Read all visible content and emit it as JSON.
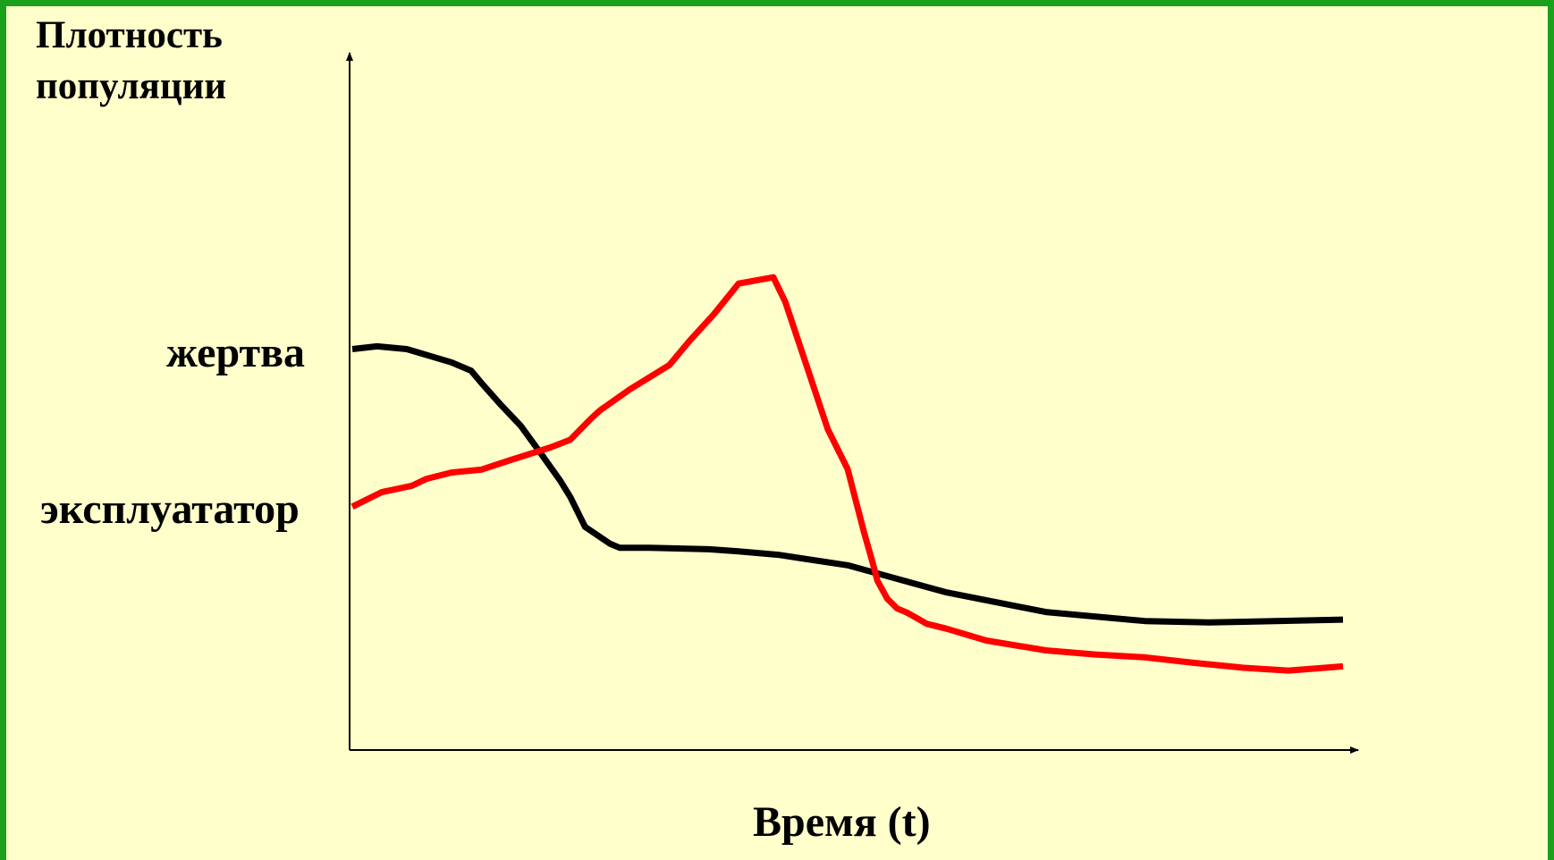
{
  "colors": {
    "frame": "#1aa01a",
    "background": "#ffffcc",
    "prey_line": "#000000",
    "predator_line": "#ff0000"
  },
  "chart_data": {
    "type": "line",
    "ylabel_lines": [
      "Плотность",
      "популяции"
    ],
    "xlabel": "Время (t)",
    "axis_ticks": false,
    "grid": false,
    "legend": "inline labels on y-axis",
    "xlim": [
      0,
      100
    ],
    "ylim": [
      0,
      100
    ],
    "series": [
      {
        "name": "жертва",
        "color": "#000000",
        "x": [
          0,
          2.5,
          5.5,
          10,
          12,
          13,
          15,
          17,
          19,
          21,
          22,
          23.5,
          26,
          27,
          30,
          36,
          39,
          43,
          50,
          60,
          70,
          80,
          86.5,
          100
        ],
        "y": [
          57.5,
          57.9,
          57.5,
          55.6,
          54.4,
          52.7,
          49.5,
          46.5,
          42.6,
          38.6,
          36.3,
          32.0,
          29.6,
          29.0,
          29.0,
          28.8,
          28.5,
          28.0,
          26.5,
          22.6,
          19.8,
          18.5,
          18.3,
          18.7
        ]
      },
      {
        "name": "эксплуататор",
        "color": "#ff0000",
        "x": [
          0,
          3,
          6,
          7.5,
          10,
          13,
          16,
          20,
          22,
          24,
          25,
          28,
          32,
          34,
          36.5,
          39,
          42.5,
          43.7,
          46,
          48,
          50,
          51,
          51.7,
          52.5,
          53,
          54,
          55,
          56,
          58,
          60,
          64,
          70,
          75,
          80,
          85,
          90,
          94.5,
          100
        ],
        "y": [
          34.9,
          37.0,
          37.9,
          38.9,
          39.8,
          40.2,
          41.6,
          43.4,
          44.5,
          47.4,
          48.7,
          51.7,
          55.2,
          58.6,
          62.5,
          66.9,
          67.8,
          64.3,
          54.5,
          46.0,
          40.3,
          34.8,
          31.0,
          27.0,
          24.3,
          21.7,
          20.3,
          19.7,
          18.1,
          17.4,
          15.7,
          14.3,
          13.7,
          13.3,
          12.5,
          11.8,
          11.4,
          12.0
        ]
      }
    ]
  }
}
